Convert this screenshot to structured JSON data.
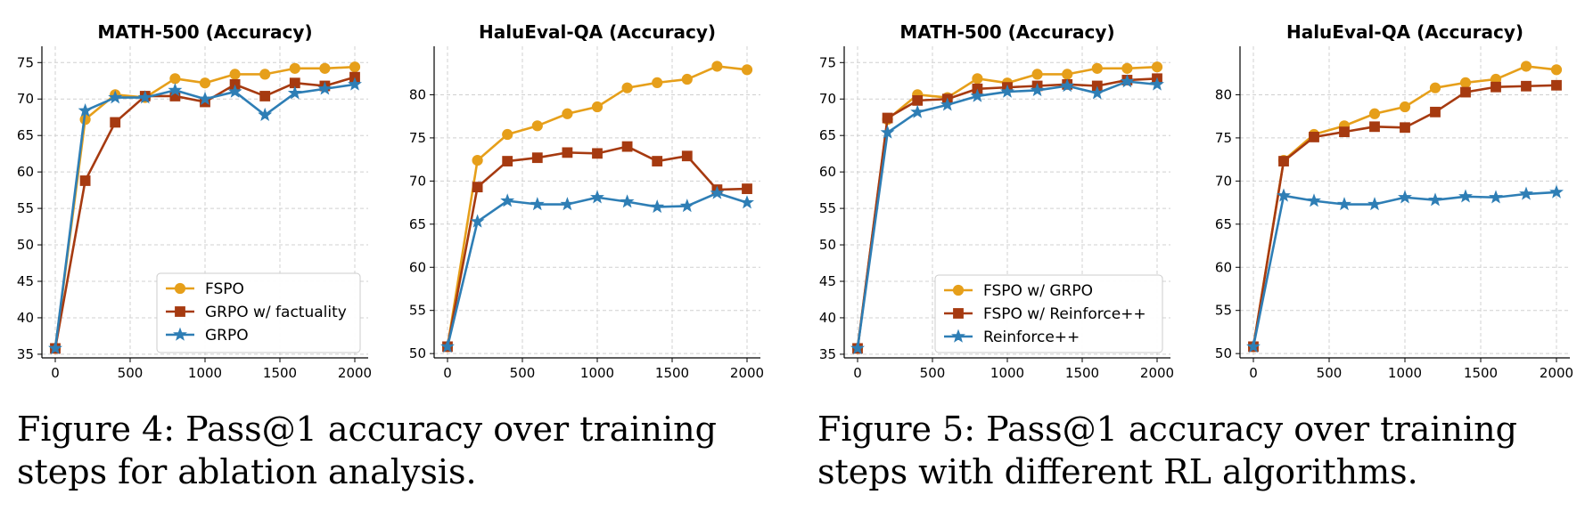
{
  "chart_data": [
    {
      "type": "line",
      "title": "MATH-500 (Accuracy)",
      "xlabel": "",
      "ylabel": "",
      "xlim": [
        0,
        2000
      ],
      "ylim": [
        34.5,
        76.5
      ],
      "xticks": [
        0,
        500,
        1000,
        1500,
        2000
      ],
      "yticks": [
        35,
        40,
        45,
        50,
        55,
        60,
        65,
        70,
        75
      ],
      "grid": true,
      "legend_position": "lower-right",
      "x": [
        0,
        200,
        400,
        600,
        800,
        1000,
        1200,
        1400,
        1600,
        1800,
        2000
      ],
      "series": [
        {
          "name": "FSPO",
          "color": "#E69F1A",
          "marker": "circle",
          "values": [
            35.8,
            67.2,
            70.6,
            70.2,
            72.8,
            72.2,
            73.4,
            73.4,
            74.2,
            74.2,
            74.4
          ]
        },
        {
          "name": "GRPO w/ factuality",
          "color": "#A63A10",
          "marker": "square",
          "values": [
            35.8,
            58.8,
            66.8,
            70.4,
            70.4,
            69.6,
            72.0,
            70.4,
            72.2,
            71.8,
            73.0
          ]
        },
        {
          "name": "GRPO",
          "color": "#2E7EB5",
          "marker": "star",
          "values": [
            35.8,
            68.4,
            70.2,
            70.2,
            71.2,
            70.0,
            71.0,
            67.8,
            70.8,
            71.4,
            72.0
          ]
        }
      ]
    },
    {
      "type": "line",
      "title": "HaluEval-QA (Accuracy)",
      "xlabel": "",
      "ylabel": "",
      "xlim": [
        0,
        2000
      ],
      "ylim": [
        49.5,
        85.0
      ],
      "xticks": [
        0,
        500,
        1000,
        1500,
        2000
      ],
      "yticks": [
        50,
        55,
        60,
        65,
        70,
        75,
        80
      ],
      "grid": true,
      "legend_position": "none",
      "x": [
        0,
        200,
        400,
        600,
        800,
        1000,
        1200,
        1400,
        1600,
        1800,
        2000
      ],
      "series": [
        {
          "name": "FSPO",
          "color": "#E69F1A",
          "marker": "circle",
          "values": [
            50.8,
            72.4,
            75.4,
            76.4,
            77.8,
            78.6,
            80.8,
            81.4,
            81.8,
            83.3,
            82.9
          ]
        },
        {
          "name": "GRPO w/ factuality",
          "color": "#A63A10",
          "marker": "square",
          "values": [
            50.8,
            69.3,
            72.3,
            72.7,
            73.3,
            73.2,
            74.0,
            72.3,
            72.9,
            69.0,
            69.1
          ]
        },
        {
          "name": "GRPO",
          "color": "#2E7EB5",
          "marker": "star",
          "values": [
            50.8,
            65.3,
            67.7,
            67.3,
            67.3,
            68.1,
            67.6,
            67.0,
            67.1,
            68.6,
            67.5
          ]
        }
      ]
    },
    {
      "type": "line",
      "title": "MATH-500 (Accuracy)",
      "xlabel": "",
      "ylabel": "",
      "xlim": [
        0,
        2000
      ],
      "ylim": [
        34.5,
        76.5
      ],
      "xticks": [
        0,
        500,
        1000,
        1500,
        2000
      ],
      "yticks": [
        35,
        40,
        45,
        50,
        55,
        60,
        65,
        70,
        75
      ],
      "grid": true,
      "legend_position": "lower-right",
      "x": [
        0,
        200,
        400,
        600,
        800,
        1000,
        1200,
        1400,
        1600,
        1800,
        2000
      ],
      "series": [
        {
          "name": "FSPO w/ GRPO",
          "color": "#E69F1A",
          "marker": "circle",
          "values": [
            35.8,
            67.2,
            70.6,
            70.2,
            72.8,
            72.2,
            73.4,
            73.4,
            74.2,
            74.2,
            74.4
          ]
        },
        {
          "name": "FSPO w/ Reinforce++",
          "color": "#A63A10",
          "marker": "square",
          "values": [
            35.8,
            67.4,
            69.8,
            70.0,
            71.4,
            71.6,
            71.8,
            72.0,
            71.8,
            72.6,
            72.8
          ]
        },
        {
          "name": "Reinforce++",
          "color": "#2E7EB5",
          "marker": "star",
          "values": [
            35.8,
            65.4,
            68.2,
            69.2,
            70.4,
            71.0,
            71.2,
            71.8,
            70.8,
            72.4,
            72.0
          ]
        }
      ]
    },
    {
      "type": "line",
      "title": "HaluEval-QA (Accuracy)",
      "xlabel": "",
      "ylabel": "",
      "xlim": [
        0,
        2000
      ],
      "ylim": [
        49.5,
        85.0
      ],
      "xticks": [
        0,
        500,
        1000,
        1500,
        2000
      ],
      "yticks": [
        50,
        55,
        60,
        65,
        70,
        75,
        80
      ],
      "grid": true,
      "legend_position": "none",
      "x": [
        0,
        200,
        400,
        600,
        800,
        1000,
        1200,
        1400,
        1600,
        1800,
        2000
      ],
      "series": [
        {
          "name": "FSPO w/ GRPO",
          "color": "#E69F1A",
          "marker": "circle",
          "values": [
            50.8,
            72.4,
            75.4,
            76.4,
            77.8,
            78.6,
            80.8,
            81.4,
            81.8,
            83.3,
            82.9
          ]
        },
        {
          "name": "FSPO w/ Reinforce++",
          "color": "#A63A10",
          "marker": "square",
          "values": [
            50.8,
            72.3,
            75.1,
            75.7,
            76.3,
            76.2,
            78.0,
            80.3,
            80.9,
            81.0,
            81.1
          ]
        },
        {
          "name": "Reinforce++",
          "color": "#2E7EB5",
          "marker": "star",
          "values": [
            50.8,
            68.3,
            67.7,
            67.3,
            67.3,
            68.1,
            67.8,
            68.2,
            68.1,
            68.5,
            68.7
          ]
        }
      ]
    }
  ],
  "captions": {
    "fig4": "Figure 4: Pass@1 accuracy over training steps for ablation analysis.",
    "fig5": "Figure 5: Pass@1 accuracy over training steps with different RL algorithms."
  }
}
